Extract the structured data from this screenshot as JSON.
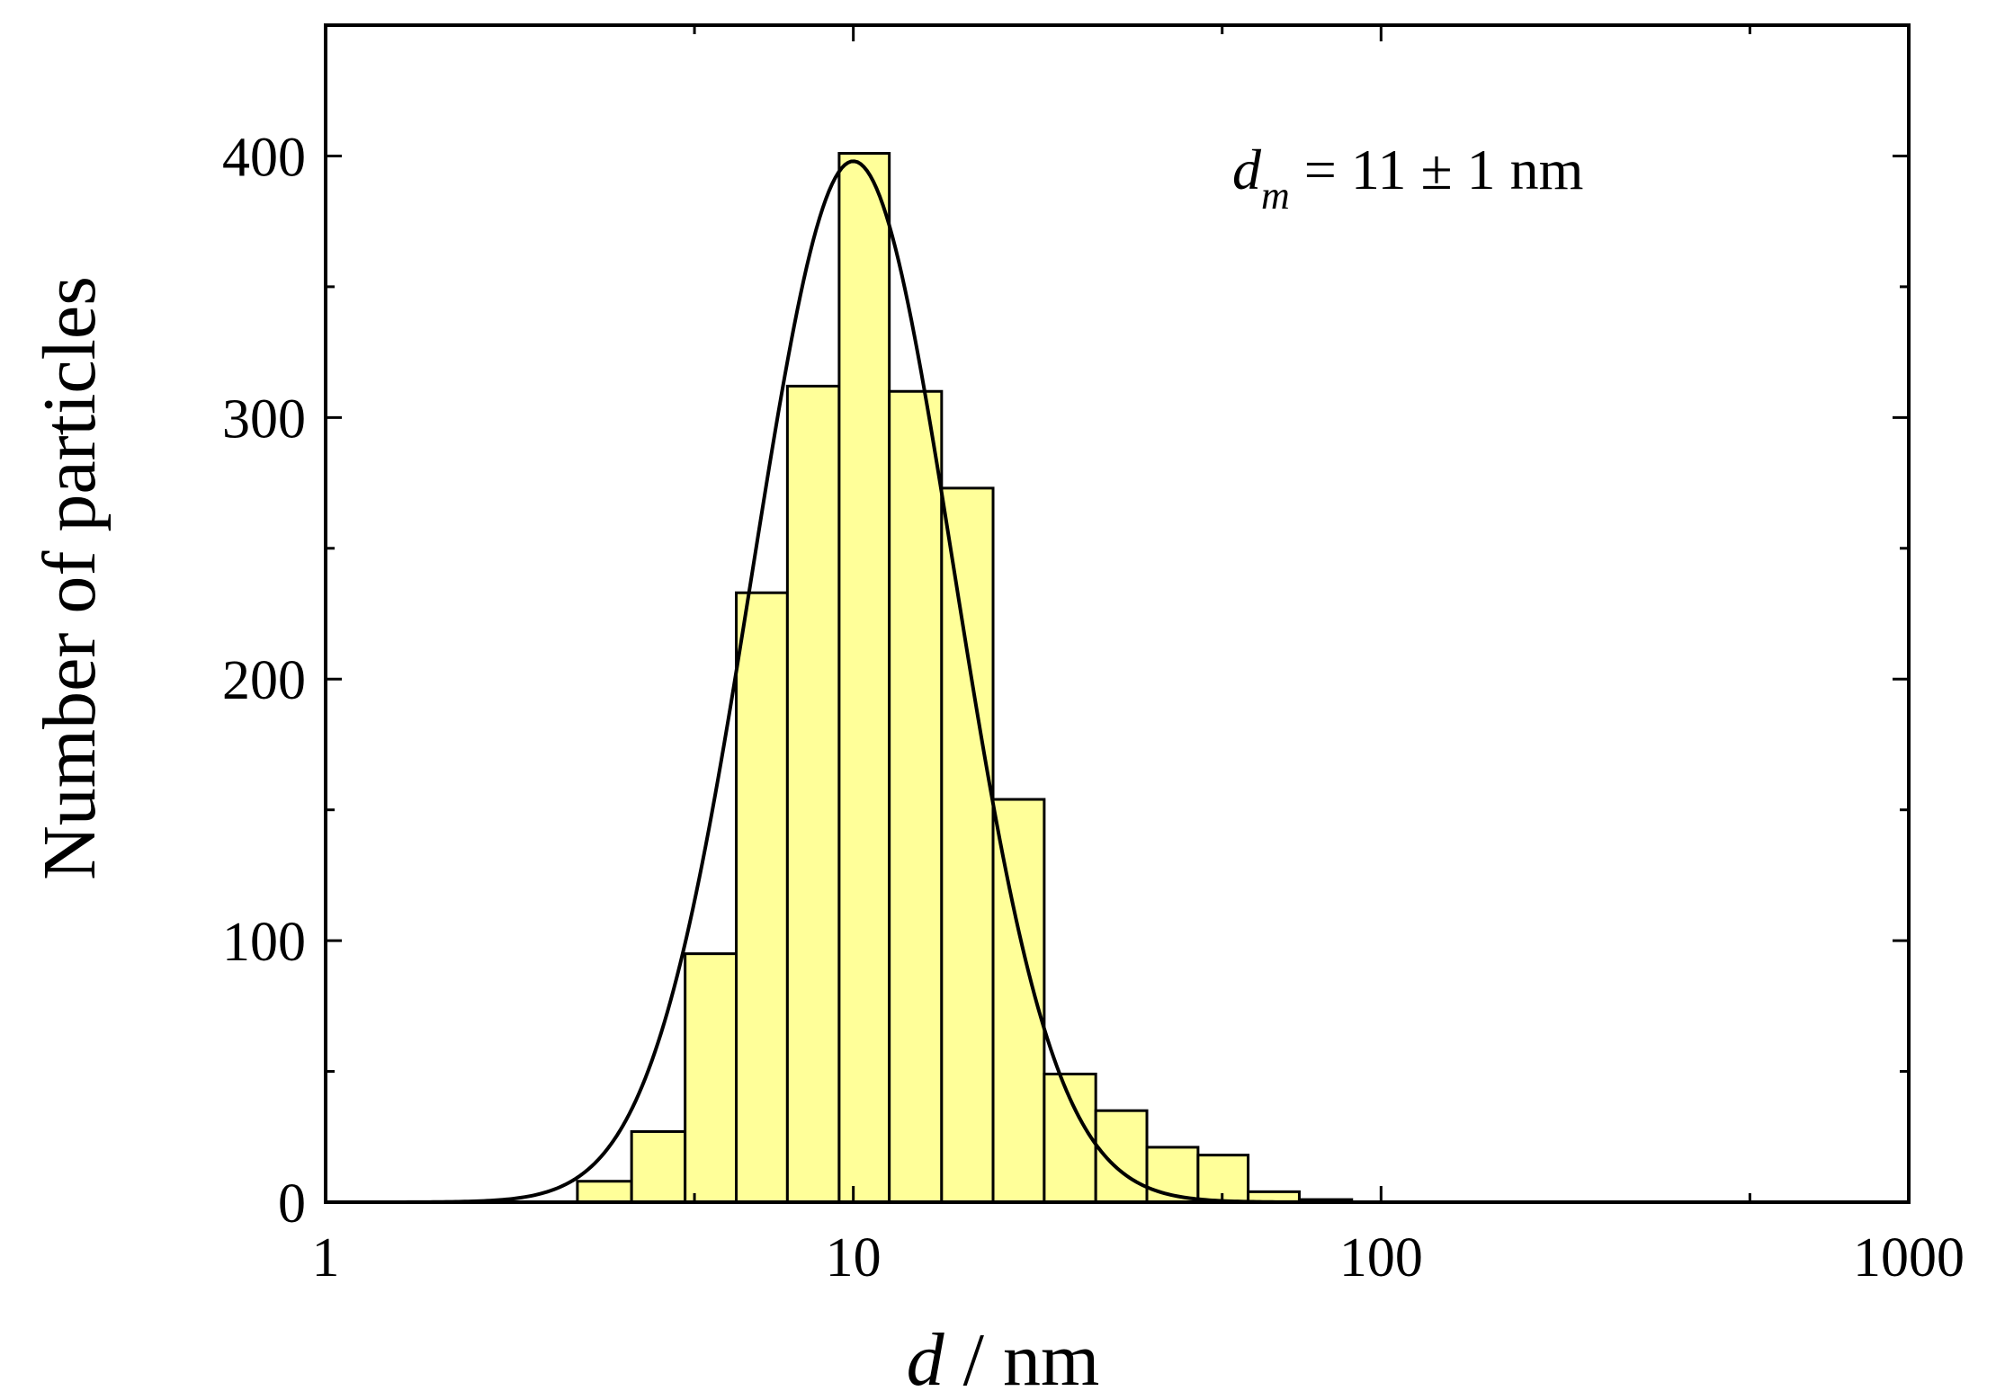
{
  "chart_data": {
    "type": "bar",
    "title": "",
    "xlabel_var": "d",
    "xlabel_rest": " / nm",
    "ylabel": "Number of particles",
    "x_scale": "log",
    "xlim": [
      1,
      1000
    ],
    "ylim": [
      0,
      450
    ],
    "x_ticks": [
      1,
      10,
      100,
      1000
    ],
    "x_tick_labels": [
      "1",
      "10",
      "100",
      "1000"
    ],
    "y_ticks": [
      0,
      100,
      200,
      300,
      400
    ],
    "y_tick_labels": [
      "0",
      "100",
      "200",
      "300",
      "400"
    ],
    "grid": false,
    "colors": {
      "bar_fill": "#ffff99",
      "bar_edge": "#000000",
      "curve": "#000000"
    },
    "bins": [
      {
        "x0": 3.0,
        "x1": 3.8,
        "value": 8
      },
      {
        "x0": 3.8,
        "x1": 4.8,
        "value": 27
      },
      {
        "x0": 4.8,
        "x1": 6.0,
        "value": 95
      },
      {
        "x0": 6.0,
        "x1": 7.5,
        "value": 233
      },
      {
        "x0": 7.5,
        "x1": 9.4,
        "value": 312
      },
      {
        "x0": 9.4,
        "x1": 11.7,
        "value": 401
      },
      {
        "x0": 11.7,
        "x1": 14.7,
        "value": 310
      },
      {
        "x0": 14.7,
        "x1": 18.4,
        "value": 273
      },
      {
        "x0": 18.4,
        "x1": 23.0,
        "value": 154
      },
      {
        "x0": 23.0,
        "x1": 28.8,
        "value": 49
      },
      {
        "x0": 28.8,
        "x1": 36.0,
        "value": 35
      },
      {
        "x0": 36.0,
        "x1": 45.0,
        "value": 21
      },
      {
        "x0": 45.0,
        "x1": 56.0,
        "value": 18
      },
      {
        "x0": 56.0,
        "x1": 70.0,
        "value": 4
      },
      {
        "x0": 70.0,
        "x1": 88.0,
        "value": 1
      }
    ],
    "fit_curve": {
      "type": "lognormal",
      "peak_x": 10.0,
      "peak_y": 398,
      "sigma_ln": 0.44
    },
    "annotation": {
      "var": "d",
      "sub": "m",
      "text": " = 11 ± 1 nm"
    }
  }
}
